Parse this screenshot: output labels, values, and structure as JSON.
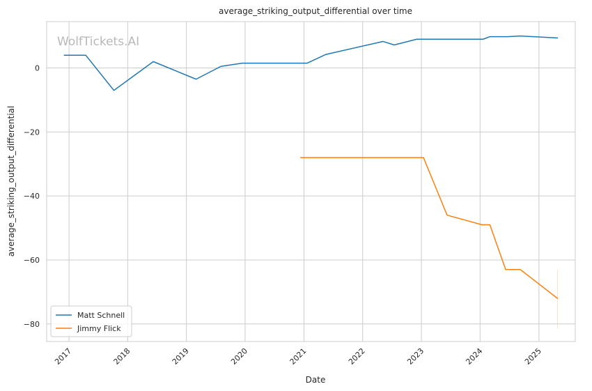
{
  "chart_data": {
    "type": "line",
    "title": "average_striking_output_differential over time",
    "xlabel": "Date",
    "ylabel": "average_striking_output_differential",
    "watermark": "WolfTickets.AI",
    "xlim": [
      "2016-08-15",
      "2025-08-15"
    ],
    "ylim": [
      -85.5,
      14.5
    ],
    "x_ticks": [
      "2017-01-01",
      "2018-01-01",
      "2019-01-01",
      "2020-01-01",
      "2021-01-01",
      "2022-01-01",
      "2023-01-01",
      "2024-01-01",
      "2025-01-01"
    ],
    "x_tick_labels": [
      "2017",
      "2018",
      "2019",
      "2020",
      "2021",
      "2022",
      "2023",
      "2024",
      "2025"
    ],
    "y_ticks": [
      0,
      -20,
      -40,
      -60,
      -80
    ],
    "y_tick_labels": [
      "0",
      "−20",
      "−40",
      "−60",
      "−80"
    ],
    "grid": true,
    "legend_position": "lower-left",
    "series": [
      {
        "name": "Matt Schnell",
        "color": "#1f77b4",
        "points": [
          [
            "2016-12-03",
            4
          ],
          [
            "2017-04-15",
            4
          ],
          [
            "2017-10-07",
            -7
          ],
          [
            "2018-06-09",
            2
          ],
          [
            "2019-03-02",
            -3.5
          ],
          [
            "2019-08-03",
            0.5
          ],
          [
            "2019-12-14",
            1.5
          ],
          [
            "2020-12-19",
            1.5
          ],
          [
            "2021-01-20",
            1.5
          ],
          [
            "2021-05-15",
            4.2
          ],
          [
            "2022-05-07",
            8.3
          ],
          [
            "2022-07-16",
            7.2
          ],
          [
            "2022-12-03",
            9.0
          ],
          [
            "2024-01-20",
            9.0
          ],
          [
            "2024-03-02",
            9.8
          ],
          [
            "2024-06-22",
            9.8
          ],
          [
            "2024-09-07",
            10.0
          ],
          [
            "2025-04-26",
            9.4
          ]
        ]
      },
      {
        "name": "Jimmy Flick",
        "color": "#ff7f0e",
        "points": [
          [
            "2020-12-12",
            -28
          ],
          [
            "2023-01-14",
            -28
          ],
          [
            "2023-06-10",
            -46
          ],
          [
            "2024-01-13",
            -49
          ],
          [
            "2024-03-02",
            -49
          ],
          [
            "2024-06-08",
            -63
          ],
          [
            "2024-09-07",
            -63
          ],
          [
            "2025-04-26",
            -72
          ]
        ],
        "error_band": {
          "x": "2025-04-26",
          "low": -81.5,
          "high": -63
        }
      }
    ]
  }
}
